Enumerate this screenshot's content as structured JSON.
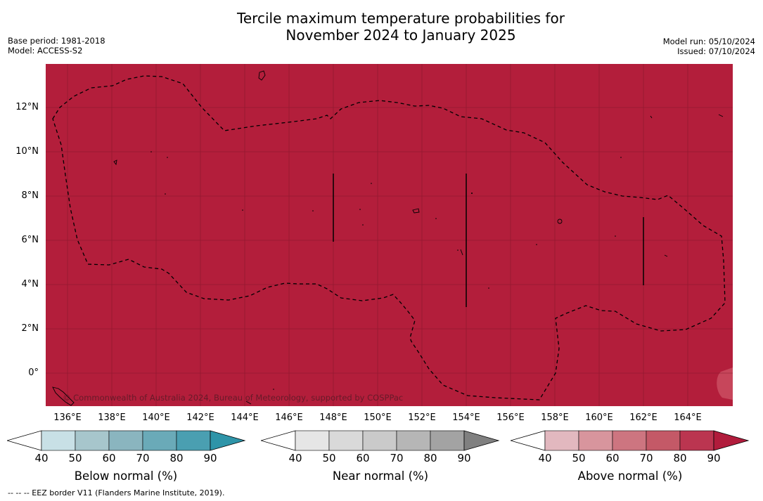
{
  "title": {
    "line1": "Tercile maximum temperature probabilities for",
    "line2": "November 2024 to January 2025"
  },
  "meta_left": {
    "base_period": "Base period: 1981-2018",
    "model": "Model: ACCESS-S2"
  },
  "meta_right": {
    "model_run": "Model run: 05/10/2024",
    "issued": "Issued: 07/10/2024"
  },
  "map": {
    "fill_color": "#b31e3b",
    "lat_labels": [
      "12°N",
      "10°N",
      "8°N",
      "6°N",
      "4°N",
      "2°N",
      "0°"
    ],
    "lon_labels": [
      "136°E",
      "138°E",
      "140°E",
      "142°E",
      "144°E",
      "146°E",
      "148°E",
      "150°E",
      "152°E",
      "154°E",
      "156°E",
      "158°E",
      "160°E",
      "162°E",
      "164°E"
    ],
    "copyright": "© Commonwealth of Australia 2024, Bureau of Meteorology, supported by COSPPac"
  },
  "colorbars": [
    {
      "label": "Below normal (%)",
      "ticks": [
        "40",
        "50",
        "60",
        "70",
        "80",
        "90"
      ],
      "colors": [
        "#ffffff",
        "#c8e0e6",
        "#a7c6cc",
        "#8ab5bf",
        "#6aaab8",
        "#4a9fb1",
        "#2e94a8"
      ]
    },
    {
      "label": "Near normal (%)",
      "ticks": [
        "40",
        "50",
        "60",
        "70",
        "80",
        "90"
      ],
      "colors": [
        "#ffffff",
        "#e6e6e6",
        "#d9d9d9",
        "#cacaca",
        "#b6b6b6",
        "#a3a3a3",
        "#808080"
      ]
    },
    {
      "label": "Above normal (%)",
      "ticks": [
        "40",
        "50",
        "60",
        "70",
        "80",
        "90"
      ],
      "colors": [
        "#ffffff",
        "#e2b8bf",
        "#d8959d",
        "#cd7580",
        "#c45967",
        "#bb3550",
        "#b11c3c"
      ]
    }
  ],
  "footnote": "--  --  -- EEZ border V11 (Flanders Marine Institute, 2019)."
}
